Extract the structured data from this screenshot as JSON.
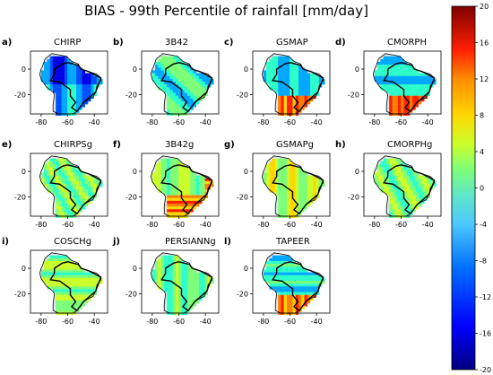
{
  "chart_data": {
    "type": "heatmap",
    "title": "BIAS - 99th Percentile of rainfall [mm/day]",
    "xticks": [
      "-80",
      "-60",
      "-40"
    ],
    "yticks": [
      "0",
      "-20"
    ],
    "xlim": [
      -88,
      -30
    ],
    "ylim": [
      -35,
      14
    ],
    "colorbar": {
      "ticks": [
        "20",
        "16",
        "12",
        "8",
        "4",
        "0",
        "-4",
        "-8",
        "-12",
        "-16",
        "-20"
      ],
      "range": [
        -20,
        20
      ]
    },
    "panels": [
      {
        "tag": "a)",
        "name": "CHIRP",
        "overall_bias": "mostly low (-4 to -16)"
      },
      {
        "tag": "b)",
        "name": "3B42",
        "overall_bias": "mixed, moderately low"
      },
      {
        "tag": "c)",
        "name": "GSMAP",
        "overall_bias": "low north, high south (+12 to +20)"
      },
      {
        "tag": "d)",
        "name": "CMORPH",
        "overall_bias": "low north, high south (+12 to +20)"
      },
      {
        "tag": "e)",
        "name": "CHIRPSg",
        "overall_bias": "near zero"
      },
      {
        "tag": "f)",
        "name": "3B42g",
        "overall_bias": "high south and east"
      },
      {
        "tag": "g)",
        "name": "GSMAPg",
        "overall_bias": "slightly high"
      },
      {
        "tag": "h)",
        "name": "CMORPHg",
        "overall_bias": "near zero"
      },
      {
        "tag": "i)",
        "name": "COSCHg",
        "overall_bias": "near zero"
      },
      {
        "tag": "j)",
        "name": "PERSIANNg",
        "overall_bias": "near zero"
      },
      {
        "tag": "l)",
        "name": "TAPEER",
        "overall_bias": "low north, high south"
      }
    ]
  },
  "colors": {
    "scale": [
      "#00007f",
      "#0000e6",
      "#0050ff",
      "#00a8ff",
      "#2cffca",
      "#7dff7a",
      "#caff2c",
      "#ffd700",
      "#ff7f00",
      "#ff1f00",
      "#7f0000"
    ]
  }
}
